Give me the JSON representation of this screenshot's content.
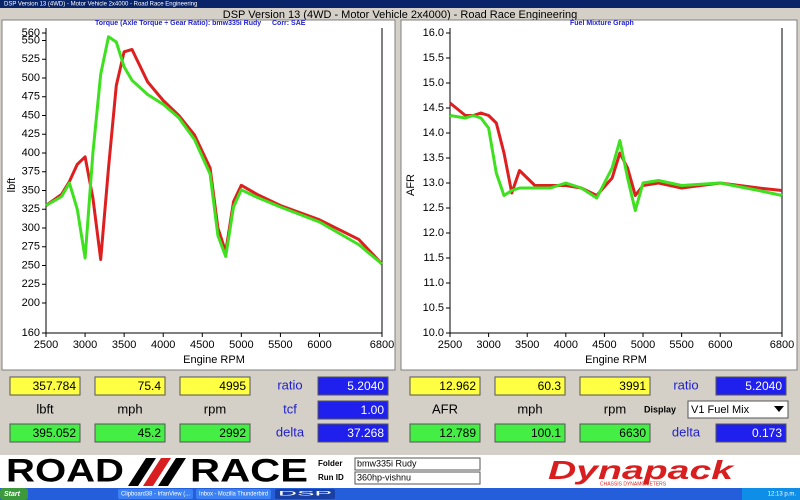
{
  "caption": "DSP Version 13 (4WD) - Motor Vehicle 2x4000 - Road Race Engineering",
  "window_title": "DSP Version 13 (4WD - Motor Vehicle 2x4000) - Road Race Engineering",
  "chart_data": [
    {
      "type": "line",
      "title": "Torque (Axle Torque ÷ Gear Ratio): bmw335i Rudy",
      "subtitle": "Corr: SAE",
      "x_label": "Engine RPM",
      "y_label": "lbft",
      "x": [
        2500,
        2700,
        2800,
        2900,
        3000,
        3100,
        3200,
        3300,
        3400,
        3500,
        3600,
        3800,
        4000,
        4200,
        4400,
        4600,
        4700,
        4800,
        4900,
        5000,
        5200,
        5500,
        6000,
        6500,
        6800
      ],
      "xlim": [
        2500,
        6800
      ],
      "xticks": [
        2500,
        3000,
        3500,
        4000,
        4500,
        5000,
        5500,
        6000,
        6800
      ],
      "ylim": [
        160,
        560
      ],
      "yticks": [
        160,
        200,
        225,
        250,
        275,
        300,
        325,
        350,
        375,
        400,
        425,
        450,
        475,
        500,
        525,
        550,
        560
      ],
      "grid": false,
      "series": [
        {
          "color": "#dd1f1f",
          "values": [
            330,
            345,
            362,
            385,
            395,
            340,
            258,
            380,
            490,
            535,
            538,
            495,
            470,
            450,
            424,
            380,
            300,
            268,
            335,
            357,
            345,
            330,
            311,
            285,
            252
          ]
        },
        {
          "color": "#3fe01f",
          "values": [
            330,
            342,
            360,
            325,
            260,
            400,
            505,
            555,
            548,
            515,
            497,
            478,
            465,
            447,
            418,
            372,
            290,
            262,
            328,
            351,
            341,
            328,
            308,
            278,
            252
          ]
        }
      ]
    },
    {
      "type": "line",
      "title": "Fuel Mixture Graph",
      "x_label": "Engine RPM",
      "y_label": "AFR",
      "x": [
        2500,
        2700,
        2800,
        2900,
        3000,
        3100,
        3200,
        3300,
        3400,
        3500,
        3600,
        3800,
        4000,
        4200,
        4400,
        4600,
        4700,
        4800,
        4900,
        5000,
        5200,
        5500,
        6000,
        6500,
        6800
      ],
      "xlim": [
        2500,
        6800
      ],
      "xticks": [
        2500,
        3000,
        3500,
        4000,
        4500,
        5000,
        5500,
        6000,
        6800
      ],
      "ylim": [
        10,
        16
      ],
      "yticks": [
        {
          "value": 10,
          "label": "10.0"
        },
        10.5,
        {
          "value": 11,
          "label": "11.0"
        },
        11.5,
        {
          "value": 12,
          "label": "12.0"
        },
        12.5,
        {
          "value": 13,
          "label": "13.0"
        },
        13.5,
        {
          "value": 14,
          "label": "14.0"
        },
        14.5,
        {
          "value": 15,
          "label": "15.0"
        },
        15.5,
        {
          "value": 16,
          "label": "16.0"
        }
      ],
      "grid": false,
      "series": [
        {
          "color": "#dd1f1f",
          "values": [
            14.6,
            14.35,
            14.35,
            14.4,
            14.35,
            14.2,
            13.6,
            12.8,
            13.25,
            13.1,
            12.95,
            12.95,
            12.95,
            12.9,
            12.75,
            13.1,
            13.6,
            13.3,
            12.75,
            12.95,
            13.0,
            12.9,
            13.0,
            12.9,
            12.85
          ]
        },
        {
          "color": "#3fe01f",
          "values": [
            14.35,
            14.3,
            14.35,
            14.3,
            14.1,
            13.2,
            12.75,
            12.85,
            12.9,
            12.9,
            12.9,
            12.9,
            13.0,
            12.9,
            12.7,
            13.3,
            13.85,
            13.1,
            12.45,
            13.0,
            13.05,
            12.95,
            13.0,
            12.85,
            12.75
          ]
        }
      ]
    }
  ],
  "readouts": [
    {
      "top": [
        "357.784",
        "75.4",
        "4995"
      ],
      "labels": [
        "lbft",
        "mph",
        "rpm"
      ],
      "bottom": [
        "395.052",
        "45.2",
        "2992"
      ],
      "side_labels": [
        "ratio",
        "tcf",
        "delta"
      ],
      "side_values": [
        "5.2040",
        "1.00",
        "37.268"
      ]
    },
    {
      "top": [
        "12.962",
        "60.3",
        "3991"
      ],
      "labels": [
        "AFR",
        "mph",
        "rpm"
      ],
      "bottom": [
        "12.789",
        "100.1",
        "6630"
      ],
      "side_labels": [
        "ratio",
        "delta"
      ],
      "side_values": [
        "5.2040",
        "0.173"
      ],
      "display_label": "Display",
      "display_value": "V1 Fuel Mix"
    }
  ],
  "footer": {
    "logo_left": "ROAD",
    "logo_right": "RACE",
    "folder_label": "Folder",
    "folder": "bmw335i Rudy",
    "run_label": "Run ID",
    "run": "360hp-vishnu",
    "brand": "Dynapack",
    "brand_sub": "CHASSIS DYNAMOMETERS"
  },
  "taskbar": {
    "start": "Start",
    "items": [
      "Clipboard38 - IrfanView (...",
      "Inbox - Mozilla Thunderbird",
      "DSP"
    ],
    "clock": "12:13 p.m."
  }
}
